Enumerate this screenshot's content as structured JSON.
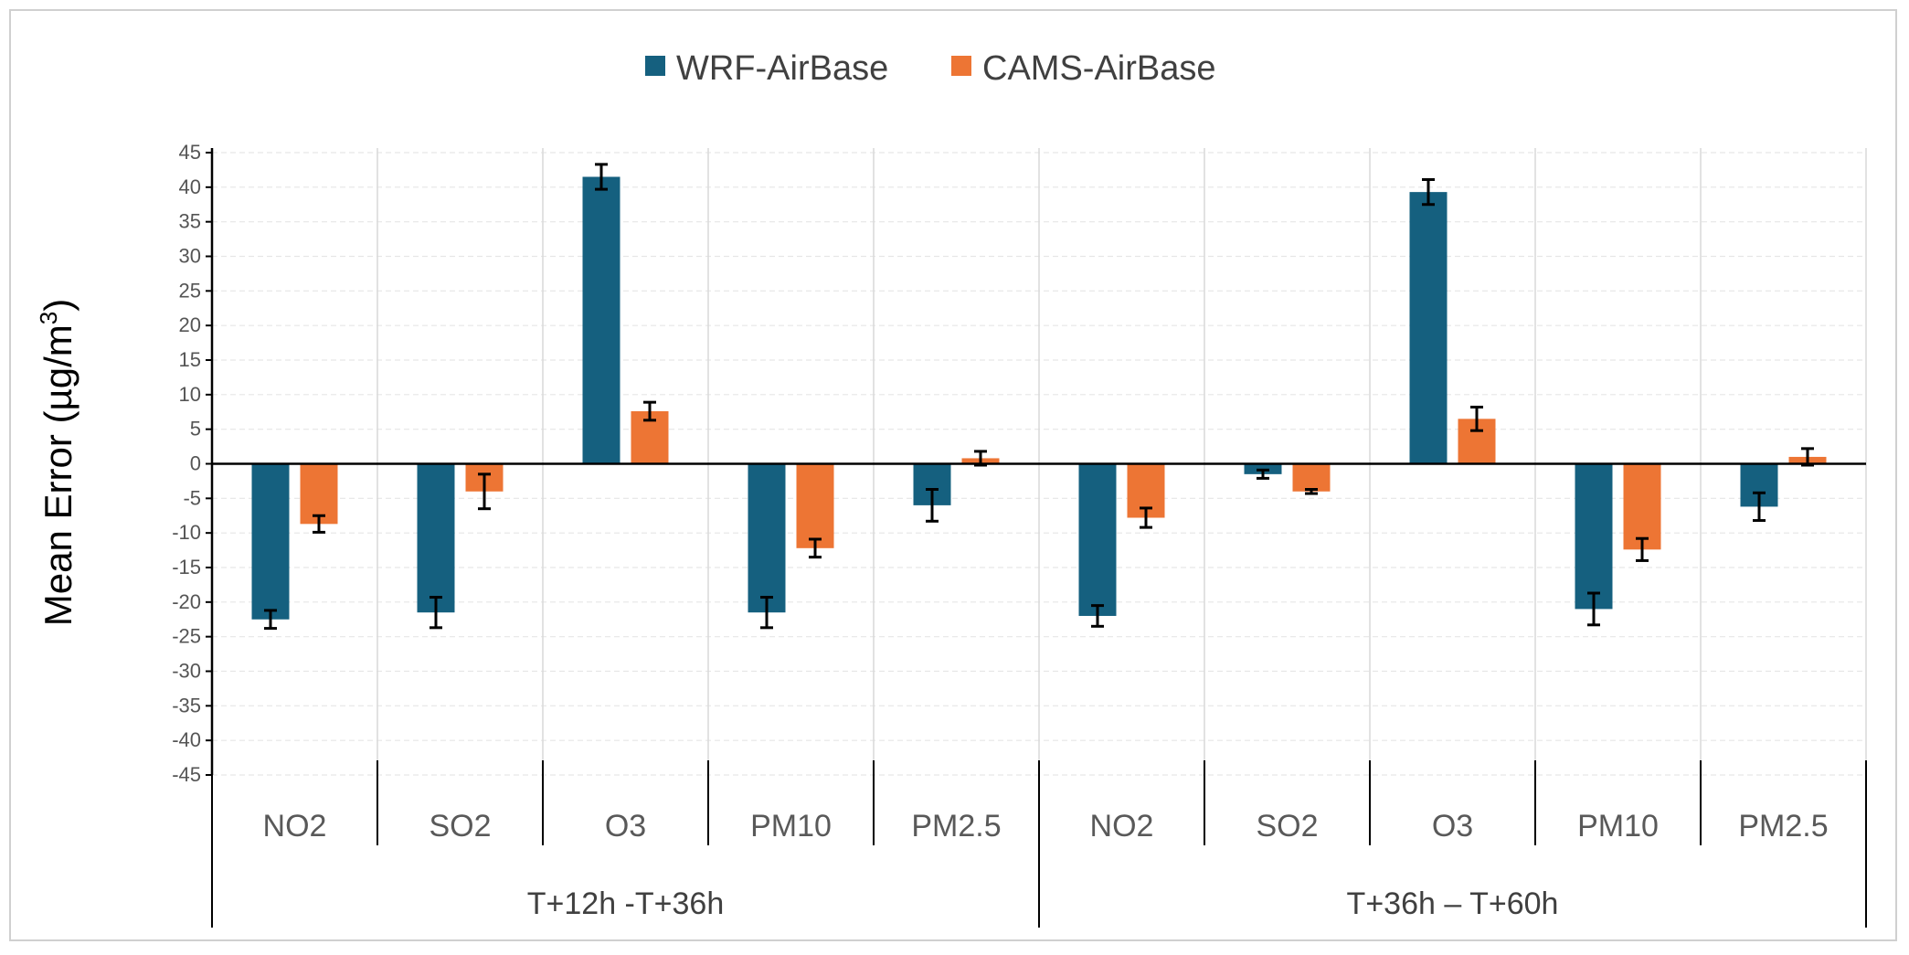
{
  "chart_data": {
    "type": "bar",
    "ylabel": "Mean Error (µg/m³)",
    "ylabel_parts": {
      "main": "Mean Error (µg/m",
      "sup": "3",
      "close": ")"
    },
    "ylim": [
      -45,
      45
    ],
    "yticks": [
      45,
      40,
      35,
      30,
      25,
      20,
      15,
      10,
      5,
      0,
      -5,
      -10,
      -15,
      -20,
      -25,
      -30,
      -35,
      -40,
      -45
    ],
    "groups": [
      {
        "label": "T+12h -T+36h",
        "categories": [
          "NO2",
          "SO2",
          "O3",
          "PM10",
          "PM2.5"
        ]
      },
      {
        "label": "T+36h – T+60h",
        "categories": [
          "NO2",
          "SO2",
          "O3",
          "PM10",
          "PM2.5"
        ]
      }
    ],
    "series": [
      {
        "name": "WRF-AirBase",
        "color": "#15607f",
        "values": [
          -22.5,
          -21.5,
          41.5,
          -21.5,
          -6.0,
          -22.0,
          -1.5,
          39.3,
          -21.0,
          -6.2
        ],
        "err": [
          1.3,
          2.2,
          1.8,
          2.2,
          2.3,
          1.5,
          0.6,
          1.8,
          2.3,
          2.0
        ]
      },
      {
        "name": "CAMS-AirBase",
        "color": "#ed7534",
        "values": [
          -8.7,
          -4.0,
          7.6,
          -12.2,
          0.8,
          -7.8,
          -4.0,
          6.5,
          -12.4,
          1.0
        ],
        "err": [
          1.2,
          2.5,
          1.3,
          1.3,
          1.0,
          1.4,
          0.3,
          1.7,
          1.6,
          1.2
        ]
      }
    ]
  }
}
